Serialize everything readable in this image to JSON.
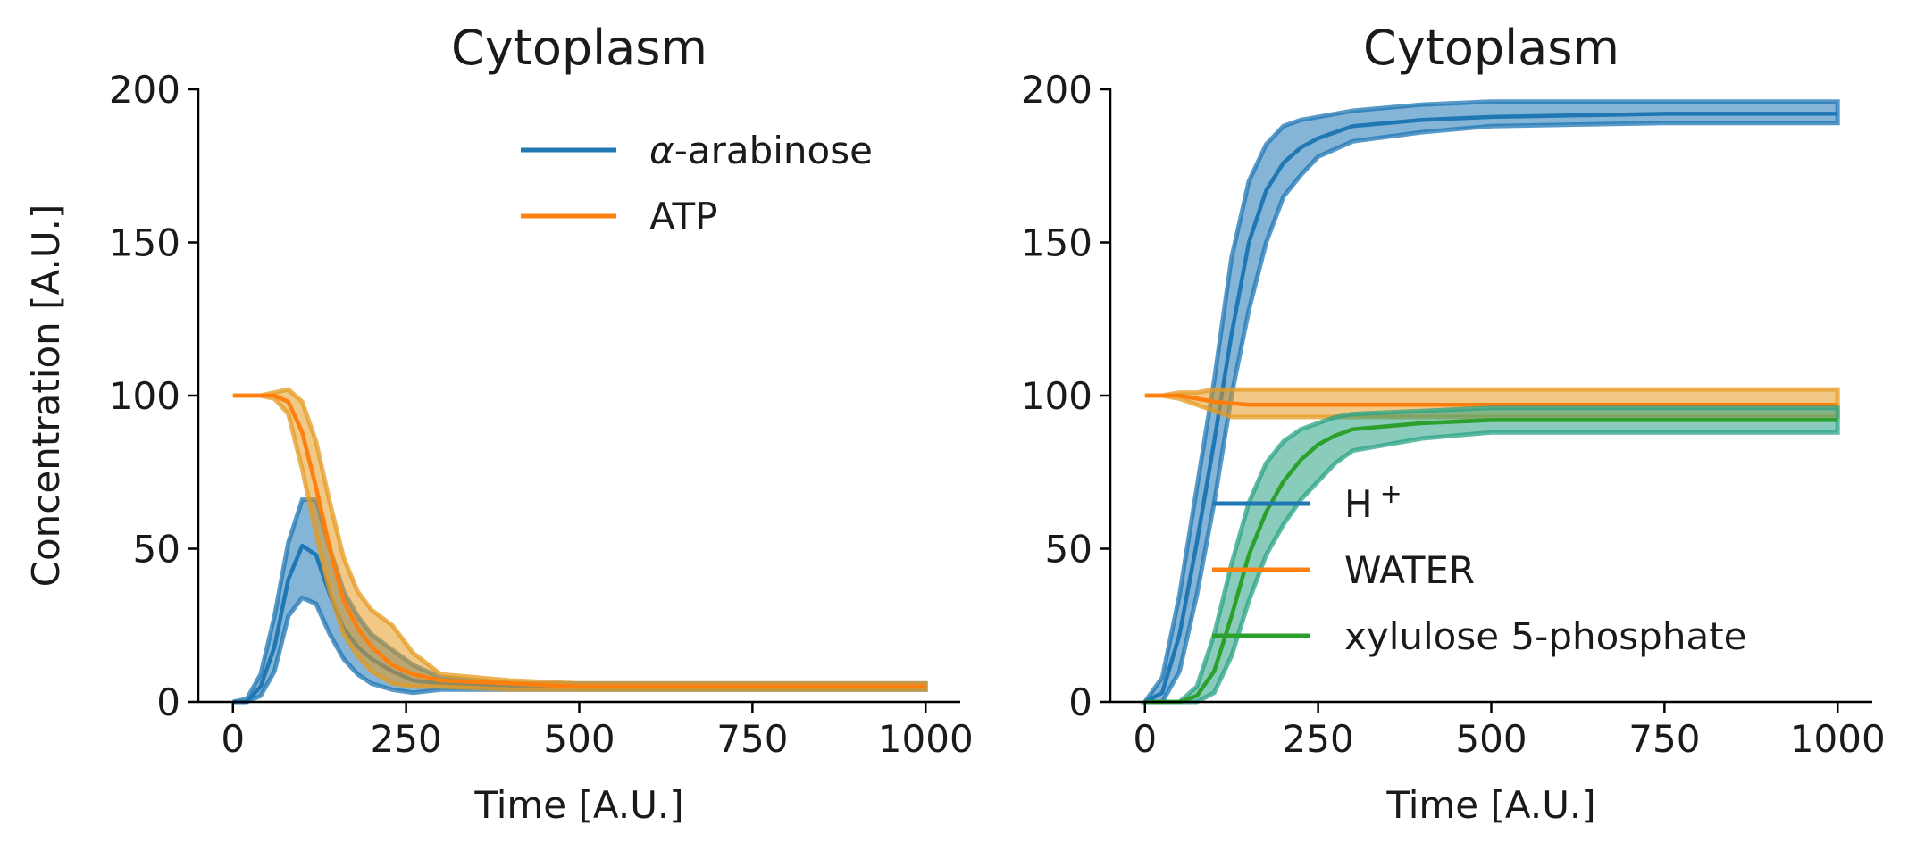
{
  "chart_data": [
    {
      "type": "line",
      "title": "Cytoplasm",
      "xlabel": "Time [A.U.]",
      "ylabel": "Concentration [A.U.]",
      "xlim": [
        -50,
        1050
      ],
      "ylim": [
        0,
        200
      ],
      "xticks": [
        "0",
        "250",
        "500",
        "750",
        "1000"
      ],
      "yticks": [
        "0",
        "50",
        "100",
        "150",
        "200"
      ],
      "legend_position": "top-right",
      "series": [
        {
          "name": "α-arabinose",
          "color": "#1f77b4",
          "band_color": "#1f77b4",
          "x": [
            0,
            20,
            40,
            60,
            80,
            100,
            120,
            140,
            160,
            180,
            200,
            230,
            260,
            300,
            400,
            500,
            750,
            1000
          ],
          "mean": [
            0,
            0,
            5,
            18,
            40,
            51,
            48,
            35,
            24,
            18,
            14,
            10,
            7,
            6,
            5,
            5,
            5,
            5
          ],
          "lower": [
            0,
            0,
            2,
            10,
            28,
            34,
            32,
            22,
            14,
            9,
            6,
            4,
            3,
            4,
            4,
            4,
            4,
            4
          ],
          "upper": [
            0,
            1,
            9,
            28,
            52,
            66,
            66,
            50,
            36,
            28,
            22,
            17,
            12,
            8,
            6,
            6,
            6,
            6
          ]
        },
        {
          "name": "ATP",
          "color": "#ff7f0e",
          "band_color": "#e69a20",
          "x": [
            0,
            20,
            40,
            60,
            80,
            100,
            120,
            140,
            160,
            180,
            200,
            230,
            260,
            300,
            400,
            500,
            750,
            1000
          ],
          "mean": [
            100,
            100,
            100,
            100,
            98,
            88,
            70,
            50,
            33,
            24,
            18,
            12,
            9,
            7,
            6,
            5,
            5,
            5
          ],
          "lower": [
            100,
            100,
            100,
            99,
            94,
            76,
            55,
            36,
            22,
            15,
            10,
            6,
            5,
            5,
            4,
            4,
            4,
            4
          ],
          "upper": [
            100,
            100,
            100,
            101,
            102,
            98,
            85,
            65,
            47,
            36,
            30,
            25,
            16,
            9,
            7,
            6,
            6,
            6
          ]
        }
      ]
    },
    {
      "type": "line",
      "title": "Cytoplasm",
      "xlabel": "Time [A.U.]",
      "ylabel": "",
      "xlim": [
        -50,
        1050
      ],
      "ylim": [
        0,
        200
      ],
      "xticks": [
        "0",
        "250",
        "500",
        "750",
        "1000"
      ],
      "yticks": [
        "0",
        "50",
        "100",
        "150",
        "200"
      ],
      "legend_position": "lower-center",
      "series": [
        {
          "name": "H",
          "name_superscript": "+",
          "color": "#1f77b4",
          "band_color": "#1f77b4",
          "x": [
            0,
            25,
            50,
            75,
            100,
            125,
            150,
            175,
            200,
            225,
            250,
            300,
            400,
            500,
            750,
            1000
          ],
          "mean": [
            0,
            3,
            22,
            52,
            85,
            120,
            150,
            167,
            176,
            181,
            184,
            188,
            190,
            191,
            192,
            192
          ],
          "lower": [
            0,
            0,
            10,
            35,
            65,
            100,
            128,
            150,
            165,
            172,
            178,
            183,
            186,
            188,
            189,
            189
          ],
          "upper": [
            0,
            8,
            35,
            70,
            105,
            145,
            170,
            182,
            188,
            190,
            191,
            193,
            195,
            196,
            196,
            196
          ]
        },
        {
          "name": "WATER",
          "color": "#ff7f0e",
          "band_color": "#e69a20",
          "x": [
            0,
            25,
            50,
            75,
            100,
            125,
            150,
            200,
            250,
            300,
            400,
            500,
            750,
            1000
          ],
          "mean": [
            100,
            100,
            100,
            99,
            98,
            97.5,
            97,
            97,
            97,
            97,
            97,
            97,
            97,
            97
          ],
          "lower": [
            100,
            100,
            99,
            97,
            95,
            93,
            93,
            93,
            93,
            93,
            93,
            93,
            93,
            93
          ],
          "upper": [
            100,
            100,
            101,
            101,
            102,
            102,
            102,
            102,
            102,
            102,
            102,
            102,
            102,
            102
          ]
        },
        {
          "name": "xylulose 5-phosphate",
          "color": "#2ca02c",
          "band_color": "#2aa384",
          "x": [
            0,
            25,
            50,
            75,
            100,
            125,
            150,
            175,
            200,
            225,
            250,
            275,
            300,
            400,
            500,
            750,
            1000
          ],
          "mean": [
            0,
            0,
            0,
            2,
            10,
            28,
            48,
            62,
            72,
            79,
            84,
            87,
            89,
            91,
            92,
            92,
            92
          ],
          "lower": [
            0,
            0,
            0,
            0,
            3,
            15,
            33,
            48,
            58,
            66,
            72,
            78,
            82,
            86,
            88,
            88,
            88
          ],
          "upper": [
            0,
            0,
            0,
            5,
            22,
            45,
            65,
            78,
            85,
            89,
            91,
            93,
            94,
            95,
            96,
            96,
            96
          ]
        }
      ]
    }
  ]
}
